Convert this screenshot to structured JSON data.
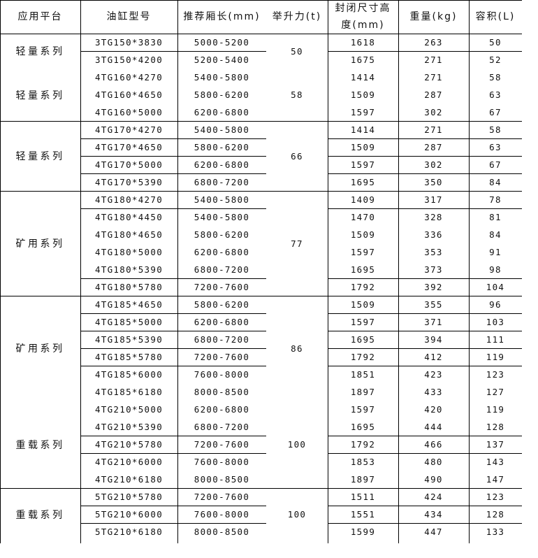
{
  "header": [
    "应用平台",
    "油缸型号",
    "推荐厢长(mm)",
    "举升力(t)",
    "封闭尺寸高度(mm)",
    "重量(kg)",
    "容积(L)"
  ],
  "groups": [
    {
      "series": "轻量系列",
      "lift": "50",
      "rows": [
        [
          "3TG150*3830",
          "5000-5200",
          "1618",
          "263",
          "50"
        ],
        [
          "3TG150*4200",
          "5200-5400",
          "1675",
          "271",
          "52"
        ]
      ]
    },
    {
      "series": "轻量系列",
      "lift": "58",
      "rows": [
        [
          "4TG160*4270",
          "5400-5800",
          "1414",
          "271",
          "58"
        ],
        [
          "4TG160*4650",
          "5800-6200",
          "1509",
          "287",
          "63"
        ],
        [
          "4TG160*5000",
          "6200-6800",
          "1597",
          "302",
          "67"
        ]
      ]
    },
    {
      "series": "轻量系列",
      "lift": "66",
      "rows": [
        [
          "4TG170*4270",
          "5400-5800",
          "1414",
          "271",
          "58"
        ],
        [
          "4TG170*4650",
          "5800-6200",
          "1509",
          "287",
          "63"
        ],
        [
          "4TG170*5000",
          "6200-6800",
          "1597",
          "302",
          "67"
        ],
        [
          "4TG170*5390",
          "6800-7200",
          "1695",
          "350",
          "84"
        ]
      ]
    },
    {
      "series": "矿用系列",
      "lift": "77",
      "rows": [
        [
          "4TG180*4270",
          "5400-5800",
          "1409",
          "317",
          "78"
        ],
        [
          "4TG180*4450",
          "5400-5800",
          "1470",
          "328",
          "81"
        ],
        [
          "4TG180*4650",
          "5800-6200",
          "1509",
          "336",
          "84"
        ],
        [
          "4TG180*5000",
          "6200-6800",
          "1597",
          "353",
          "91"
        ],
        [
          "4TG180*5390",
          "6800-7200",
          "1695",
          "373",
          "98"
        ],
        [
          "4TG180*5780",
          "7200-7600",
          "1792",
          "392",
          "104"
        ]
      ]
    },
    {
      "series": "矿用系列",
      "lift": "86",
      "rows": [
        [
          "4TG185*4650",
          "5800-6200",
          "1509",
          "355",
          "96"
        ],
        [
          "4TG185*5000",
          "6200-6800",
          "1597",
          "371",
          "103"
        ],
        [
          "4TG185*5390",
          "6800-7200",
          "1695",
          "394",
          "111"
        ],
        [
          "4TG185*5780",
          "7200-7600",
          "1792",
          "412",
          "119"
        ],
        [
          "4TG185*6000",
          "7600-8000",
          "1851",
          "423",
          "123"
        ],
        [
          "4TG185*6180",
          "8000-8500",
          "1897",
          "433",
          "127"
        ]
      ]
    },
    {
      "series": "重载系列",
      "lift": "100",
      "rows": [
        [
          "4TG210*5000",
          "6200-6800",
          "1597",
          "420",
          "119"
        ],
        [
          "4TG210*5390",
          "6800-7200",
          "1695",
          "444",
          "128"
        ],
        [
          "4TG210*5780",
          "7200-7600",
          "1792",
          "466",
          "137"
        ],
        [
          "4TG210*6000",
          "7600-8000",
          "1853",
          "480",
          "143"
        ],
        [
          "4TG210*6180",
          "8000-8500",
          "1897",
          "490",
          "147"
        ]
      ]
    },
    {
      "series": "重载系列",
      "lift": "100",
      "rows": [
        [
          "5TG210*5780",
          "7200-7600",
          "1511",
          "424",
          "123"
        ],
        [
          "5TG210*6000",
          "7600-8000",
          "1551",
          "434",
          "128"
        ],
        [
          "5TG210*6180",
          "8000-8500",
          "1599",
          "447",
          "133"
        ]
      ]
    }
  ]
}
